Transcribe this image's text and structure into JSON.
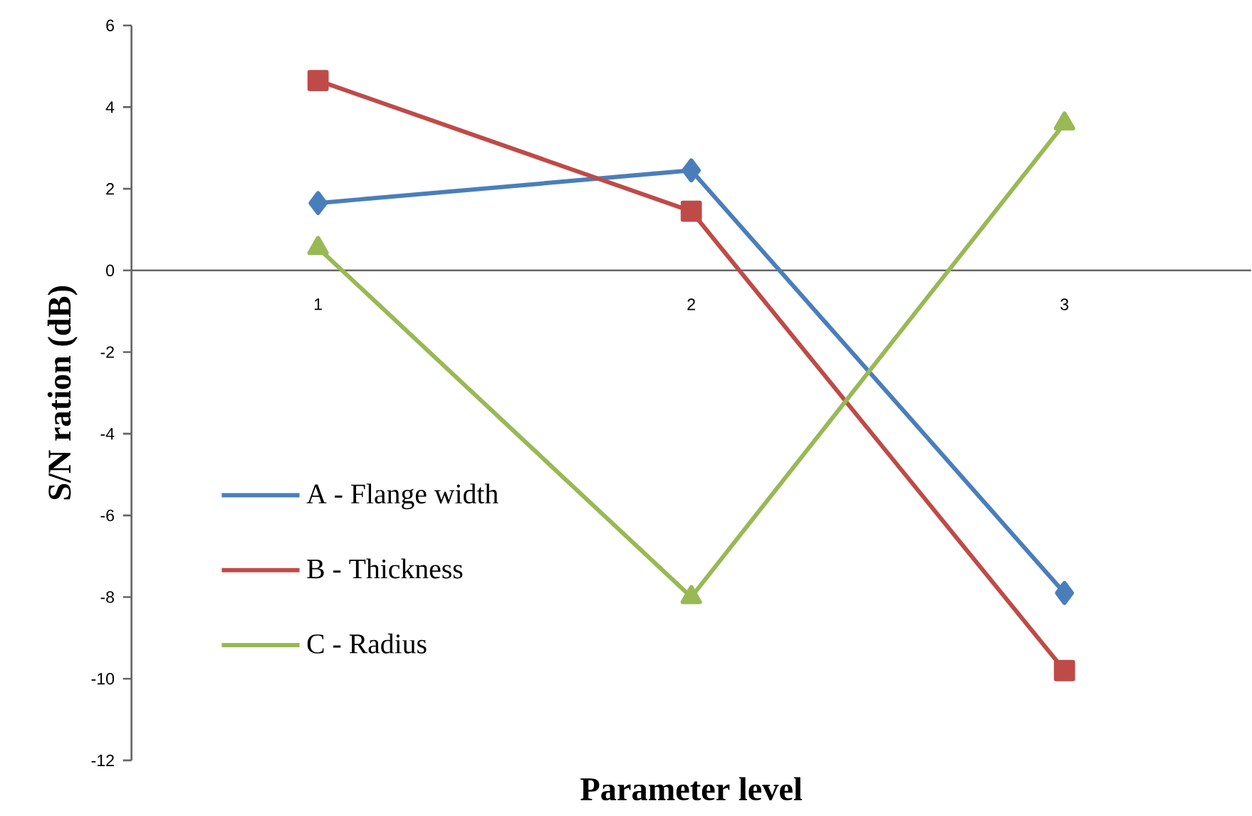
{
  "chart_data": {
    "type": "line",
    "xlabel": "Parameter level",
    "ylabel": "S/N ration (dB)",
    "categories": [
      "1",
      "2",
      "3"
    ],
    "series": [
      {
        "name": "A - Flange width",
        "color": "#4a7ebb",
        "marker": "diamond",
        "values": [
          1.65,
          2.45,
          -7.9
        ]
      },
      {
        "name": "B - Thickness",
        "color": "#be4b48",
        "marker": "square",
        "values": [
          4.65,
          1.45,
          -9.8
        ]
      },
      {
        "name": "C - Radius",
        "color": "#98b954",
        "marker": "triangle",
        "values": [
          0.55,
          -8.0,
          3.6
        ]
      }
    ],
    "ylim": [
      -12,
      6
    ],
    "yticks": [
      -12,
      -10,
      -8,
      -6,
      -4,
      -2,
      0,
      2,
      4,
      6
    ],
    "legend": "left",
    "line_style": "solid"
  }
}
